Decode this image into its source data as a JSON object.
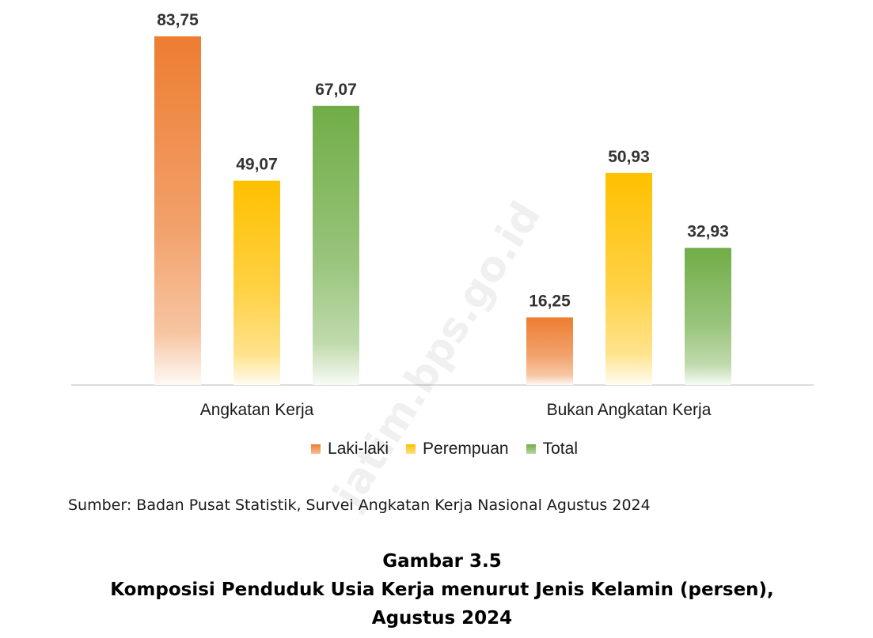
{
  "chart_data": {
    "type": "bar",
    "categories": [
      "Angkatan Kerja",
      "Bukan Angkatan Kerja"
    ],
    "series": [
      {
        "name": "Laki-laki",
        "values": [
          83.75,
          16.25
        ],
        "labels": [
          "83,75",
          "16,25"
        ],
        "color": "#ED7D31"
      },
      {
        "name": "Perempuan",
        "values": [
          49.07,
          50.93
        ],
        "labels": [
          "49,07",
          "50,93"
        ],
        "color": "#FFC000"
      },
      {
        "name": "Total",
        "values": [
          67.07,
          32.93
        ],
        "labels": [
          "67,07",
          "32,93"
        ],
        "color": "#70AD47"
      }
    ],
    "ylim": [
      0,
      83.75
    ],
    "grid": false,
    "legend": "bottom"
  },
  "source": "Sumber: Badan Pusat Statistik, Survei Angkatan Kerja Nasional Agustus 2024",
  "caption": {
    "line1": "Gambar 3.5",
    "line2": "Komposisi Penduduk Usia Kerja menurut Jenis Kelamin (persen),",
    "line3": "Agustus 2024"
  },
  "watermark": "jatim.bps.go.id"
}
